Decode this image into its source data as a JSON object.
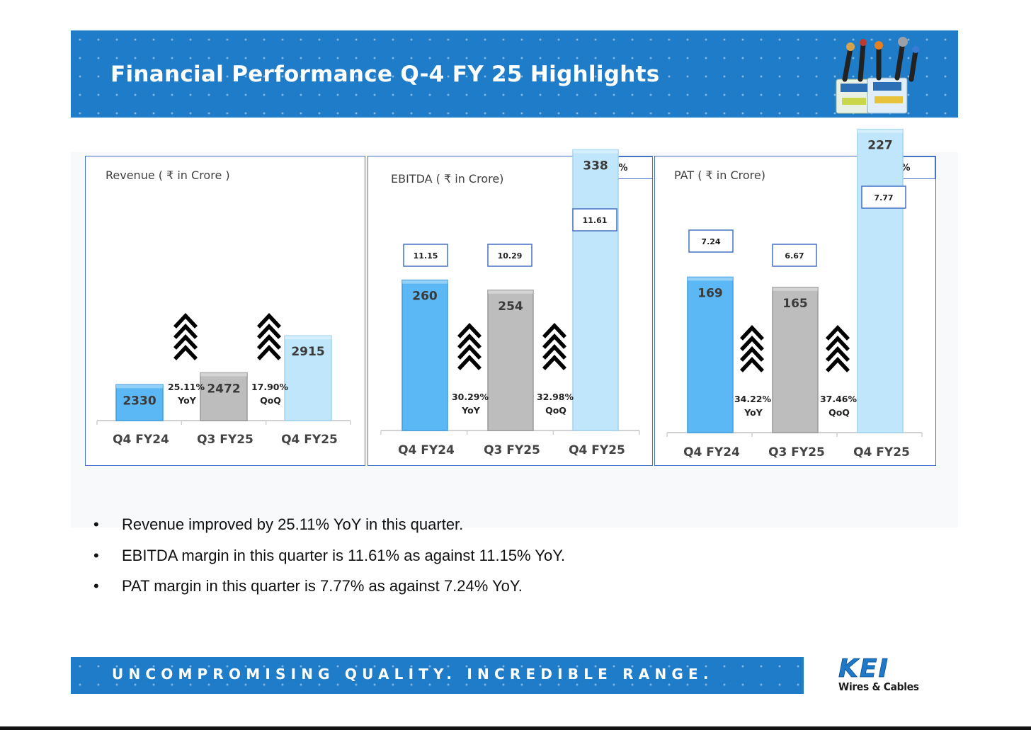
{
  "header": {
    "title": "Financial Performance Q-4 FY 25 Highlights"
  },
  "colors": {
    "header_blue": "#1E7CC8",
    "bar_q4fy24": "#5BB8F5",
    "bar_q3fy25": "#BDBDBD",
    "bar_q4fy25": "#BFE6FB",
    "box_border": "#4472C4"
  },
  "chart_data": [
    {
      "type": "bar",
      "title": "Revenue  ( ₹ in Crore )",
      "categories": [
        "Q4 FY24",
        "Q3 FY25",
        "Q4 FY25"
      ],
      "values": [
        2330,
        2472,
        2915
      ],
      "growth": [
        {
          "pct": "25.11%",
          "label": "YoY"
        },
        {
          "pct": "17.90%",
          "label": "QoQ"
        }
      ],
      "margin_header": "",
      "margins": []
    },
    {
      "type": "bar",
      "title": "EBITDA ( ₹ in Crore)",
      "categories": [
        "Q4 FY24",
        "Q3 FY25",
        "Q4 FY25"
      ],
      "values": [
        260,
        254,
        338
      ],
      "growth": [
        {
          "pct": "30.29%",
          "label": "YoY"
        },
        {
          "pct": "32.98%",
          "label": "QoQ"
        }
      ],
      "margin_header": "%",
      "margins": [
        "11.15",
        "10.29",
        "11.61"
      ]
    },
    {
      "type": "bar",
      "title": "PAT ( ₹ in Crore)",
      "categories": [
        "Q4 FY24",
        "Q3 FY25",
        "Q4 FY25"
      ],
      "values": [
        169,
        165,
        227
      ],
      "growth": [
        {
          "pct": "34.22%",
          "label": "YoY"
        },
        {
          "pct": "37.46%",
          "label": "QoQ"
        }
      ],
      "margin_header": "%",
      "margins": [
        "7.24",
        "6.67",
        "7.77"
      ]
    }
  ],
  "bullets": {
    "symbol": "•",
    "items": [
      "Revenue improved by 25.11% YoY in this quarter.",
      "EBITDA margin in this quarter is 11.61% as against 11.15% YoY.",
      "PAT margin in this quarter is 7.77% as against 7.24% YoY."
    ]
  },
  "footer": {
    "tagline": "UNCOMPROMISING QUALITY. INCREDIBLE RANGE."
  },
  "logo": {
    "mark": "KEI",
    "subtitle": "Wires & Cables"
  }
}
